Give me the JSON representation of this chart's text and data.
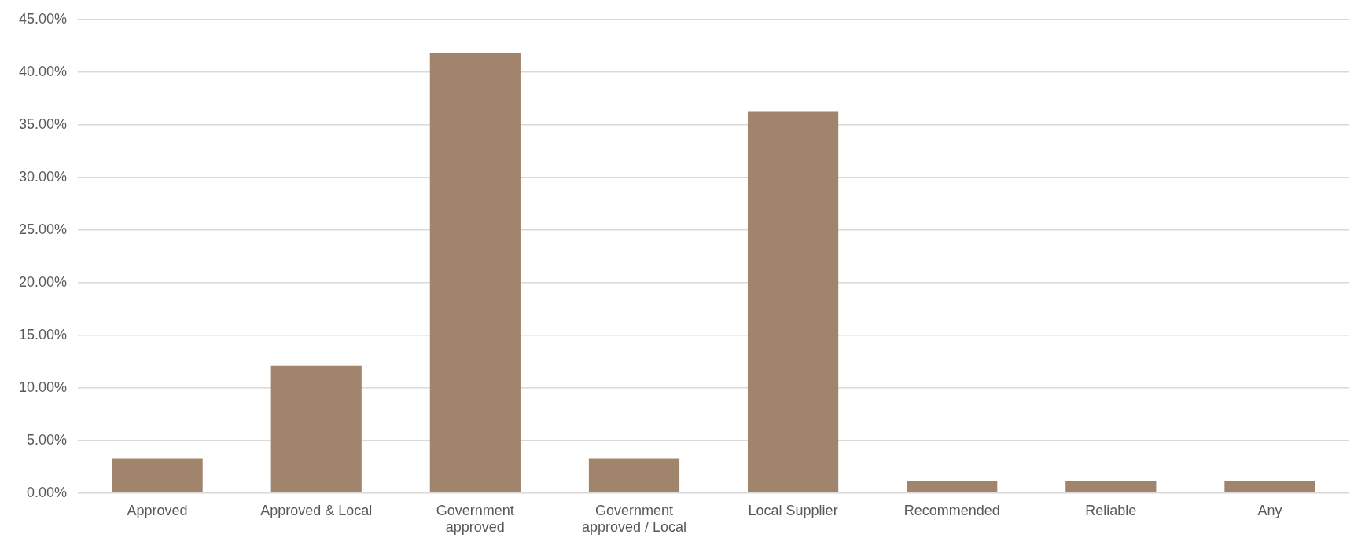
{
  "chart_data": {
    "type": "bar",
    "categories": [
      "Approved",
      "Approved & Local",
      "Government approved",
      "Government approved / Local",
      "Local Supplier",
      "Recommended",
      "Reliable",
      "Any"
    ],
    "values": [
      3.3,
      12.1,
      41.8,
      3.3,
      36.3,
      1.1,
      1.1,
      1.1
    ],
    "color": "#a0846c",
    "ylim": [
      0,
      45
    ],
    "yticks": [
      {
        "value": 0,
        "label": "0.00%"
      },
      {
        "value": 5,
        "label": "5.00%"
      },
      {
        "value": 10,
        "label": "10.00%"
      },
      {
        "value": 15,
        "label": "15.00%"
      },
      {
        "value": 20,
        "label": "20.00%"
      },
      {
        "value": 25,
        "label": "25.00%"
      },
      {
        "value": 30,
        "label": "30.00%"
      },
      {
        "value": 35,
        "label": "35.00%"
      },
      {
        "value": 40,
        "label": "40.00%"
      },
      {
        "value": 45,
        "label": "45.00%"
      }
    ],
    "grid": "y",
    "legend": false
  }
}
